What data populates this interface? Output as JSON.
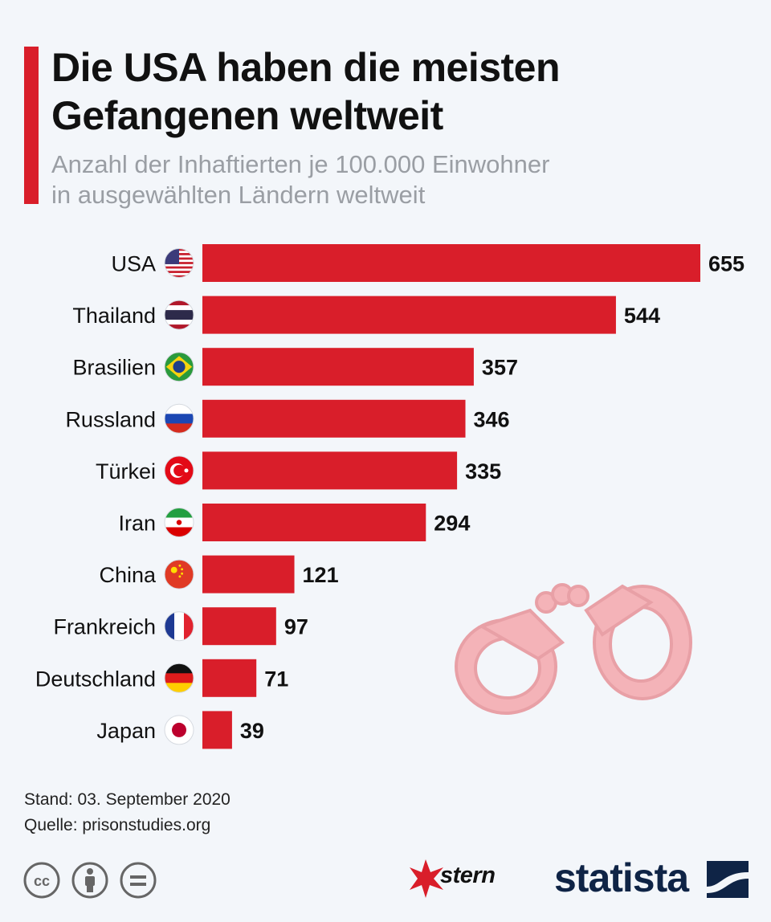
{
  "title_line1": "Die USA haben die meisten",
  "title_line2": "Gefangenen weltweit",
  "subtitle_line1": "Anzahl der Inhaftierten je 100.000 Einwohner",
  "subtitle_line2": "in ausgewählten Ländern weltweit",
  "stand": "Stand: 03. September 2020",
  "quelle": "Quelle: prisonstudies.org",
  "brand_stern": "stern",
  "brand_statista": "statista",
  "colors": {
    "bar": "#d91e2a",
    "background": "#f3f6fa",
    "accent": "#d91e2a",
    "statista": "#0f2446"
  },
  "chart_data": {
    "type": "bar",
    "orientation": "horizontal",
    "title": "Die USA haben die meisten Gefangenen weltweit",
    "subtitle": "Anzahl der Inhaftierten je 100.000 Einwohner in ausgewählten Ländern weltweit",
    "categories": [
      "USA",
      "Thailand",
      "Brasilien",
      "Russland",
      "Türkei",
      "Iran",
      "China",
      "Frankreich",
      "Deutschland",
      "Japan"
    ],
    "flags": [
      "us",
      "th",
      "br",
      "ru",
      "tr",
      "ir",
      "cn",
      "fr",
      "de",
      "jp"
    ],
    "values": [
      655,
      544,
      357,
      346,
      335,
      294,
      121,
      97,
      71,
      39
    ],
    "xlim": [
      0,
      655
    ],
    "xlabel": "",
    "ylabel": "",
    "grid": false,
    "data_labels": true
  }
}
